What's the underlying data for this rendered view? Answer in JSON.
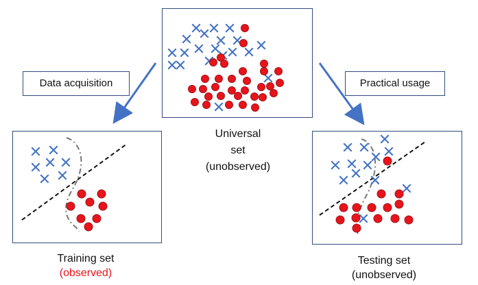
{
  "labels": {
    "acquisition": "Data acquisition",
    "usage": "Practical usage"
  },
  "captions": {
    "universal": [
      "Universal",
      "set",
      "(unobserved)"
    ],
    "training": [
      "Training set",
      "(observed)"
    ],
    "testing": [
      "Testing set",
      "(unobserved)"
    ]
  },
  "colors": {
    "cross": "#4472c4",
    "circle": "#e8141b",
    "circle_stroke": "#a0151a",
    "border": "#2f4b7c",
    "arrow": "#4472c4",
    "boundary": "#111111",
    "curve": "#777777",
    "observed_text": "#e8141b"
  },
  "icons": {
    "cross": "blue-x-marker",
    "circle": "red-dot-marker"
  }
}
